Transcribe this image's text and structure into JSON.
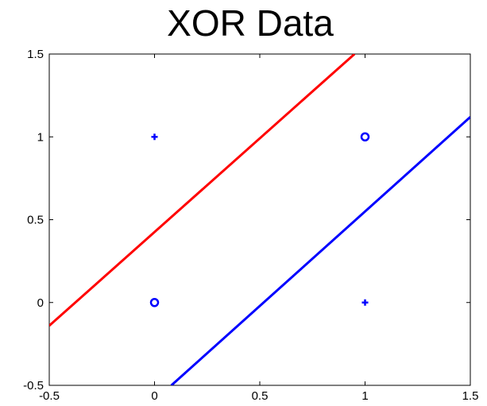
{
  "chart_data": {
    "type": "scatter",
    "title": "XOR Data",
    "xlabel": "",
    "ylabel": "",
    "xlim": [
      -0.5,
      1.5
    ],
    "ylim": [
      -0.5,
      1.5
    ],
    "xticks": [
      -0.5,
      0,
      0.5,
      1,
      1.5
    ],
    "yticks": [
      -0.5,
      0,
      0.5,
      1,
      1.5
    ],
    "xtick_labels": [
      "-0.5",
      "0",
      "0.5",
      "1",
      "1.5"
    ],
    "ytick_labels": [
      "-0.5",
      "0",
      "0.5",
      "1",
      "1.5"
    ],
    "grid": false,
    "points": [
      {
        "x": 0,
        "y": 1,
        "marker": "plus",
        "color": "#0000ff"
      },
      {
        "x": 1,
        "y": 0,
        "marker": "plus",
        "color": "#0000ff"
      },
      {
        "x": 0,
        "y": 0,
        "marker": "circle",
        "color": "#0000ff"
      },
      {
        "x": 1,
        "y": 1,
        "marker": "circle",
        "color": "#0000ff"
      }
    ],
    "lines": [
      {
        "x": [
          -0.5,
          0.95
        ],
        "y": [
          -0.14,
          1.5
        ],
        "color": "#ff0000"
      },
      {
        "x": [
          0.08,
          1.5
        ],
        "y": [
          -0.5,
          1.12
        ],
        "color": "#0000ff"
      }
    ]
  }
}
